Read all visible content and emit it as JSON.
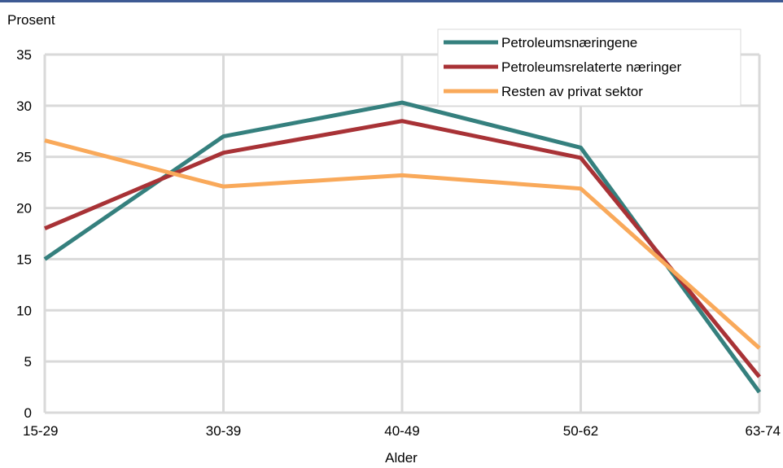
{
  "chart_data": {
    "type": "line",
    "ylabel": "Prosent",
    "xlabel": "Alder",
    "categories": [
      "15-29",
      "30-39",
      "40-49",
      "50-62",
      "63-74"
    ],
    "ylim": [
      0,
      35
    ],
    "yticks": [
      0,
      5,
      10,
      15,
      20,
      25,
      30,
      35
    ],
    "grid": true,
    "legend_position": "top-right",
    "series": [
      {
        "name": "Petroleumsnæringene",
        "color": "#35807e",
        "values": [
          15.0,
          27.0,
          30.3,
          25.9,
          2.0
        ]
      },
      {
        "name": "Petroleumsrelaterte næringer",
        "color": "#a83236",
        "values": [
          18.0,
          25.4,
          28.5,
          24.9,
          3.5
        ]
      },
      {
        "name": "Resten av privat sektor",
        "color": "#f9a95a",
        "values": [
          26.6,
          22.1,
          23.2,
          21.9,
          6.3
        ]
      }
    ]
  }
}
